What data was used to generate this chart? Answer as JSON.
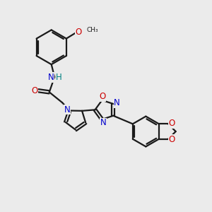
{
  "bg_color": "#ebebeb",
  "bond_color": "#1a1a1a",
  "atom_colors": {
    "N": "#0000cc",
    "O": "#cc0000",
    "C": "#1a1a1a",
    "H": "#008080"
  },
  "line_width": 1.6,
  "font_size_atom": 8.5,
  "font_size_small": 7.0
}
